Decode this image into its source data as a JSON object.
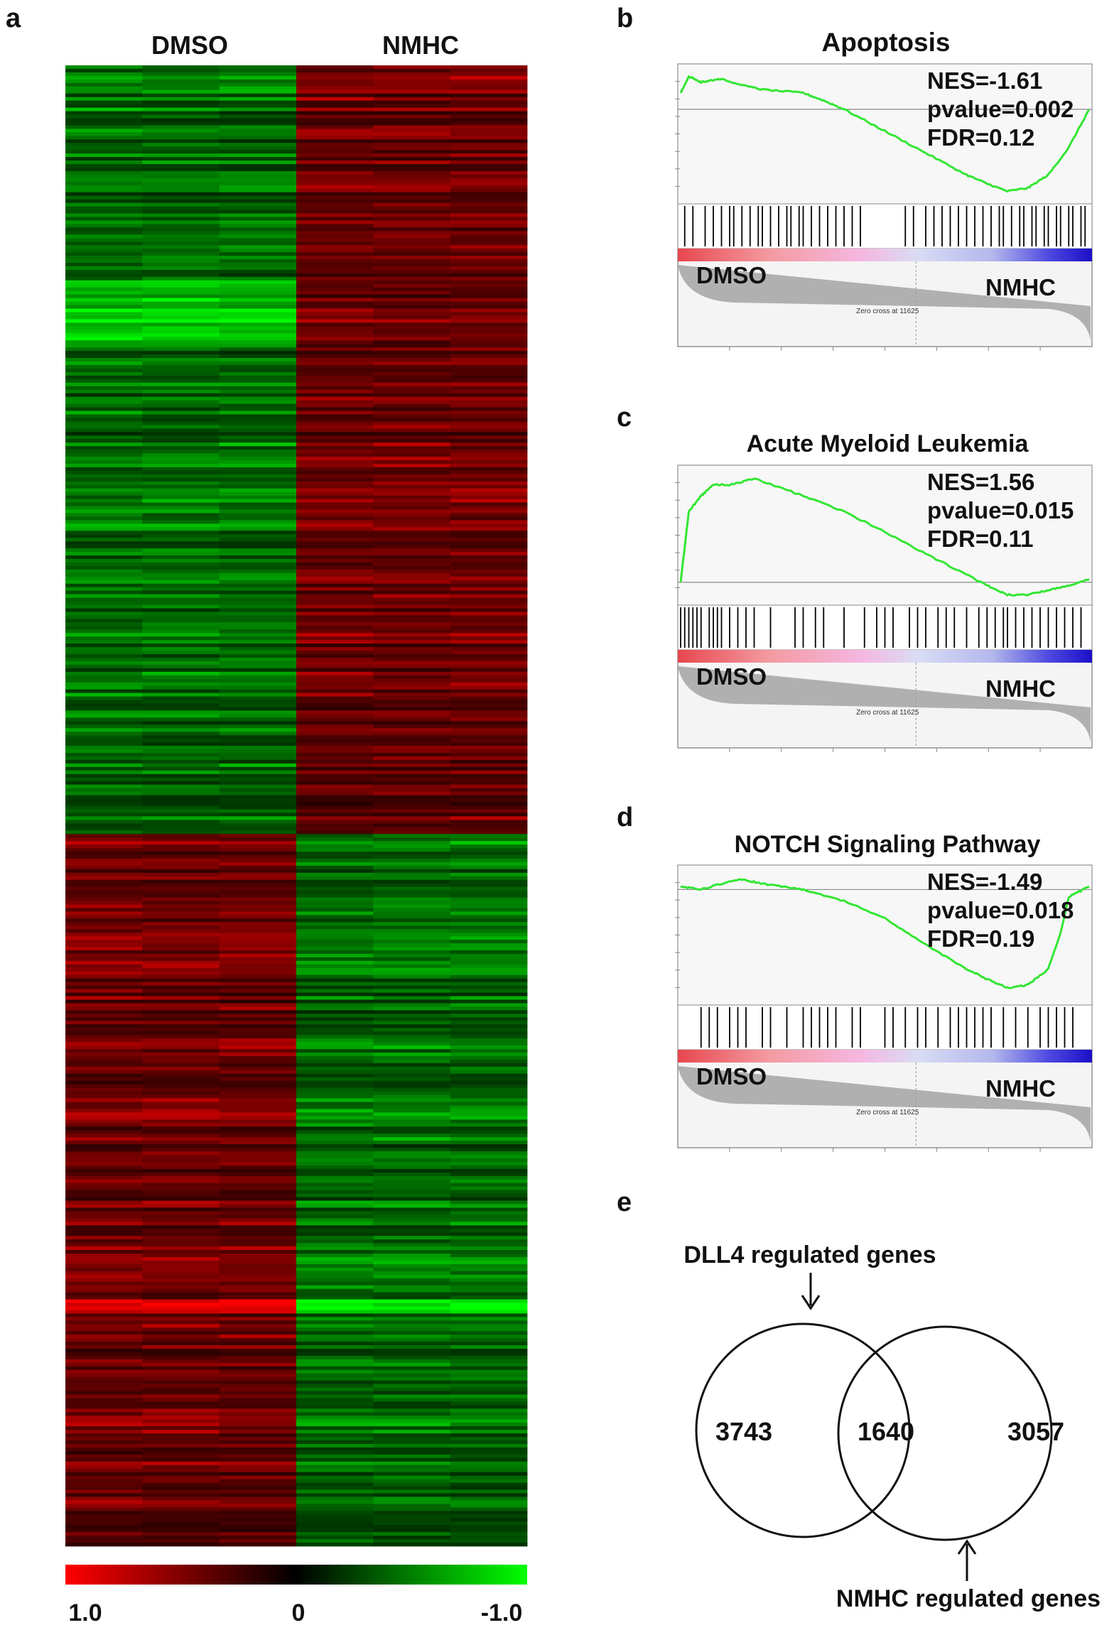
{
  "panels": {
    "a": "a",
    "b": "b",
    "c": "c",
    "d": "d",
    "e": "e"
  },
  "colors": {
    "heat_high": "#ff0000",
    "heat_mid": "#000000",
    "heat_low": "#00ff00",
    "es_curve": "#33e633",
    "hit_line": "#000000",
    "ranked_metric": "#b0b0b0",
    "gradient": [
      "#e8474f",
      "#f39aa0",
      "#f5b6e0",
      "#d9dcf4",
      "#b3b7ec",
      "#4b46e0",
      "#1c0fc7"
    ]
  },
  "chart_data": [
    {
      "id": "a",
      "type": "heatmap",
      "column_groups": [
        "DMSO",
        "NMHC"
      ],
      "columns_per_group": 3,
      "row_blocks": [
        {
          "pattern": "DMSO low (green), NMHC high (red)",
          "fraction_of_rows": 0.52
        },
        {
          "pattern": "DMSO high (red), NMHC low (green)",
          "fraction_of_rows": 0.48
        }
      ],
      "colorbar": {
        "tick_labels": [
          "1.0",
          "0",
          "-1.0"
        ],
        "range": [
          1.0,
          -1.0
        ]
      }
    },
    {
      "id": "b",
      "type": "line",
      "title": "Apoptosis",
      "stats": [
        "NES=-1.61",
        "pvalue=0.002",
        "FDR=0.12"
      ],
      "left_label": "DMSO",
      "right_label": "NMHC",
      "zero_cross_text": "Zero cross at 11625",
      "curve": {
        "x": [
          0,
          0.02,
          0.05,
          0.1,
          0.15,
          0.2,
          0.3,
          0.35,
          0.4,
          0.5,
          0.6,
          0.7,
          0.75,
          0.8,
          0.85,
          0.9,
          0.95,
          1.0
        ],
        "y": [
          0.15,
          0.3,
          0.25,
          0.28,
          0.22,
          0.18,
          0.15,
          0.08,
          0.0,
          -0.2,
          -0.4,
          -0.6,
          -0.68,
          -0.75,
          -0.72,
          -0.6,
          -0.35,
          0.0
        ],
        "ylim": [
          -0.8,
          0.35
        ]
      },
      "hit_positions": [
        0.01,
        0.03,
        0.06,
        0.08,
        0.1,
        0.12,
        0.13,
        0.15,
        0.17,
        0.19,
        0.2,
        0.22,
        0.24,
        0.26,
        0.27,
        0.29,
        0.3,
        0.32,
        0.34,
        0.36,
        0.38,
        0.4,
        0.42,
        0.44,
        0.55,
        0.57,
        0.6,
        0.62,
        0.64,
        0.66,
        0.68,
        0.7,
        0.72,
        0.74,
        0.76,
        0.78,
        0.79,
        0.81,
        0.83,
        0.84,
        0.86,
        0.87,
        0.89,
        0.9,
        0.92,
        0.93,
        0.95,
        0.96,
        0.98,
        0.99
      ]
    },
    {
      "id": "c",
      "type": "line",
      "title": "Acute Myeloid Leukemia",
      "stats": [
        "NES=1.56",
        "pvalue=0.015",
        "FDR=0.11"
      ],
      "left_label": "DMSO",
      "right_label": "NMHC",
      "zero_cross_text": "Zero cross at 11625",
      "curve": {
        "x": [
          0,
          0.02,
          0.05,
          0.08,
          0.12,
          0.18,
          0.3,
          0.4,
          0.5,
          0.6,
          0.7,
          0.75,
          0.8,
          0.85,
          0.9,
          0.95,
          1.0
        ],
        "y": [
          0.0,
          0.45,
          0.55,
          0.62,
          0.62,
          0.66,
          0.55,
          0.45,
          0.32,
          0.18,
          0.05,
          -0.02,
          -0.08,
          -0.08,
          -0.05,
          -0.02,
          0.02
        ],
        "ylim": [
          -0.1,
          0.7
        ]
      },
      "hit_positions": [
        0.0,
        0.01,
        0.02,
        0.03,
        0.04,
        0.05,
        0.07,
        0.08,
        0.09,
        0.1,
        0.12,
        0.14,
        0.16,
        0.18,
        0.22,
        0.28,
        0.3,
        0.33,
        0.35,
        0.4,
        0.45,
        0.48,
        0.5,
        0.52,
        0.56,
        0.58,
        0.6,
        0.63,
        0.65,
        0.67,
        0.7,
        0.73,
        0.75,
        0.77,
        0.79,
        0.8,
        0.82,
        0.84,
        0.86,
        0.88,
        0.9,
        0.92,
        0.94,
        0.96,
        0.98
      ]
    },
    {
      "id": "d",
      "type": "line",
      "title": "NOTCH Signaling Pathway",
      "stats": [
        "NES=-1.49",
        "pvalue=0.018",
        "FDR=0.19"
      ],
      "left_label": "DMSO",
      "right_label": "NMHC",
      "zero_cross_text": "Zero cross at 11625",
      "curve": {
        "x": [
          0,
          0.05,
          0.1,
          0.15,
          0.2,
          0.25,
          0.3,
          0.4,
          0.5,
          0.6,
          0.7,
          0.75,
          0.8,
          0.85,
          0.9,
          0.93,
          0.95,
          1.0
        ],
        "y": [
          0.02,
          0.0,
          0.04,
          0.07,
          0.04,
          0.02,
          0.0,
          -0.08,
          -0.2,
          -0.38,
          -0.55,
          -0.62,
          -0.68,
          -0.66,
          -0.55,
          -0.3,
          -0.05,
          0.02
        ],
        "ylim": [
          -0.75,
          0.12
        ]
      },
      "hit_positions": [
        0.05,
        0.07,
        0.09,
        0.12,
        0.14,
        0.16,
        0.2,
        0.22,
        0.26,
        0.3,
        0.32,
        0.34,
        0.36,
        0.38,
        0.42,
        0.44,
        0.5,
        0.52,
        0.55,
        0.58,
        0.6,
        0.63,
        0.66,
        0.68,
        0.7,
        0.72,
        0.74,
        0.76,
        0.79,
        0.82,
        0.85,
        0.88,
        0.9,
        0.92,
        0.94,
        0.96
      ]
    },
    {
      "id": "e",
      "type": "venn",
      "sets": [
        {
          "label": "DLL4 regulated genes",
          "only": "3743"
        },
        {
          "label": "NMHC regulated genes",
          "only": "3057"
        }
      ],
      "intersection": "1640"
    }
  ]
}
